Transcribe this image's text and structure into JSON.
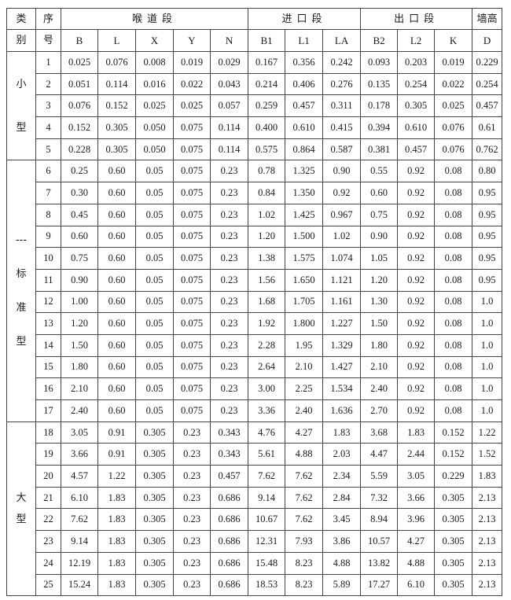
{
  "header": {
    "category_top": "类",
    "category_bottom": "别",
    "index_top": "序",
    "index_bottom": "号",
    "groups": [
      {
        "label": "喉道段",
        "columns": [
          "B",
          "L",
          "X",
          "Y",
          "N"
        ]
      },
      {
        "label": "进口段",
        "columns": [
          "B1",
          "L1",
          "LA"
        ]
      },
      {
        "label": "出口段",
        "columns": [
          "B2",
          "L2",
          "K"
        ]
      },
      {
        "label": "墙高",
        "columns": [
          "D"
        ]
      }
    ]
  },
  "categories": [
    {
      "label_chars": [
        "小",
        "型"
      ],
      "rows": [
        [
          "1",
          "0.025",
          "0.076",
          "0.008",
          "0.019",
          "0.029",
          "0.167",
          "0.356",
          "0.242",
          "0.093",
          "0.203",
          "0.019",
          "0.229"
        ],
        [
          "2",
          "0.051",
          "0.114",
          "0.016",
          "0.022",
          "0.043",
          "0.214",
          "0.406",
          "0.276",
          "0.135",
          "0.254",
          "0.022",
          "0.254"
        ],
        [
          "3",
          "0.076",
          "0.152",
          "0.025",
          "0.025",
          "0.057",
          "0.259",
          "0.457",
          "0.311",
          "0.178",
          "0.305",
          "0.025",
          "0.457"
        ],
        [
          "4",
          "0.152",
          "0.305",
          "0.050",
          "0.075",
          "0.114",
          "0.400",
          "0.610",
          "0.415",
          "0.394",
          "0.610",
          "0.076",
          "0.61"
        ],
        [
          "5",
          "0.228",
          "0.305",
          "0.050",
          "0.075",
          "0.114",
          "0.575",
          "0.864",
          "0.587",
          "0.381",
          "0.457",
          "0.076",
          "0.762"
        ]
      ]
    },
    {
      "label_chars": [
        "---",
        "标",
        "准",
        "型"
      ],
      "rows": [
        [
          "6",
          "0.25",
          "0.60",
          "0.05",
          "0.075",
          "0.23",
          "0.78",
          "1.325",
          "0.90",
          "0.55",
          "0.92",
          "0.08",
          "0.80"
        ],
        [
          "7",
          "0.30",
          "0.60",
          "0.05",
          "0.075",
          "0.23",
          "0.84",
          "1.350",
          "0.92",
          "0.60",
          "0.92",
          "0.08",
          "0.95"
        ],
        [
          "8",
          "0.45",
          "0.60",
          "0.05",
          "0.075",
          "0.23",
          "1.02",
          "1.425",
          "0.967",
          "0.75",
          "0.92",
          "0.08",
          "0.95"
        ],
        [
          "9",
          "0.60",
          "0.60",
          "0.05",
          "0.075",
          "0.23",
          "1.20",
          "1.500",
          "1.02",
          "0.90",
          "0.92",
          "0.08",
          "0.95"
        ],
        [
          "10",
          "0.75",
          "0.60",
          "0.05",
          "0.075",
          "0.23",
          "1.38",
          "1.575",
          "1.074",
          "1.05",
          "0.92",
          "0.08",
          "0.95"
        ],
        [
          "11",
          "0.90",
          "0.60",
          "0.05",
          "0.075",
          "0.23",
          "1.56",
          "1.650",
          "1.121",
          "1.20",
          "0.92",
          "0.08",
          "0.95"
        ],
        [
          "12",
          "1.00",
          "0.60",
          "0.05",
          "0.075",
          "0.23",
          "1.68",
          "1.705",
          "1.161",
          "1.30",
          "0.92",
          "0.08",
          "1.0"
        ],
        [
          "13",
          "1.20",
          "0.60",
          "0.05",
          "0.075",
          "0.23",
          "1.92",
          "1.800",
          "1.227",
          "1.50",
          "0.92",
          "0.08",
          "1.0"
        ],
        [
          "14",
          "1.50",
          "0.60",
          "0.05",
          "0.075",
          "0.23",
          "2.28",
          "1.95",
          "1.329",
          "1.80",
          "0.92",
          "0.08",
          "1.0"
        ],
        [
          "15",
          "1.80",
          "0.60",
          "0.05",
          "0.075",
          "0.23",
          "2.64",
          "2.10",
          "1.427",
          "2.10",
          "0.92",
          "0.08",
          "1.0"
        ],
        [
          "16",
          "2.10",
          "0.60",
          "0.05",
          "0.075",
          "0.23",
          "3.00",
          "2.25",
          "1.534",
          "2.40",
          "0.92",
          "0.08",
          "1.0"
        ],
        [
          "17",
          "2.40",
          "0.60",
          "0.05",
          "0.075",
          "0.23",
          "3.36",
          "2.40",
          "1.636",
          "2.70",
          "0.92",
          "0.08",
          "1.0"
        ]
      ]
    },
    {
      "label_chars": [
        "大",
        "型"
      ],
      "rows": [
        [
          "18",
          "3.05",
          "0.91",
          "0.305",
          "0.23",
          "0.343",
          "4.76",
          "4.27",
          "1.83",
          "3.68",
          "1.83",
          "0.152",
          "1.22"
        ],
        [
          "19",
          "3.66",
          "0.91",
          "0.305",
          "0.23",
          "0.343",
          "5.61",
          "4.88",
          "2.03",
          "4.47",
          "2.44",
          "0.152",
          "1.52"
        ],
        [
          "20",
          "4.57",
          "1.22",
          "0.305",
          "0.23",
          "0.457",
          "7.62",
          "7.62",
          "2.34",
          "5.59",
          "3.05",
          "0.229",
          "1.83"
        ],
        [
          "21",
          "6.10",
          "1.83",
          "0.305",
          "0.23",
          "0.686",
          "9.14",
          "7.62",
          "2.84",
          "7.32",
          "3.66",
          "0.305",
          "2.13"
        ],
        [
          "22",
          "7.62",
          "1.83",
          "0.305",
          "0.23",
          "0.686",
          "10.67",
          "7.62",
          "3.45",
          "8.94",
          "3.96",
          "0.305",
          "2.13"
        ],
        [
          "23",
          "9.14",
          "1.83",
          "0.305",
          "0.23",
          "0.686",
          "12.31",
          "7.93",
          "3.86",
          "10.57",
          "4.27",
          "0.305",
          "2.13"
        ],
        [
          "24",
          "12.19",
          "1.83",
          "0.305",
          "0.23",
          "0.686",
          "15.48",
          "8.23",
          "4.88",
          "13.82",
          "4.88",
          "0.305",
          "2.13"
        ],
        [
          "25",
          "15.24",
          "1.83",
          "0.305",
          "0.23",
          "0.686",
          "18.53",
          "8.23",
          "5.89",
          "17.27",
          "6.10",
          "0.305",
          "2.13"
        ]
      ]
    }
  ]
}
